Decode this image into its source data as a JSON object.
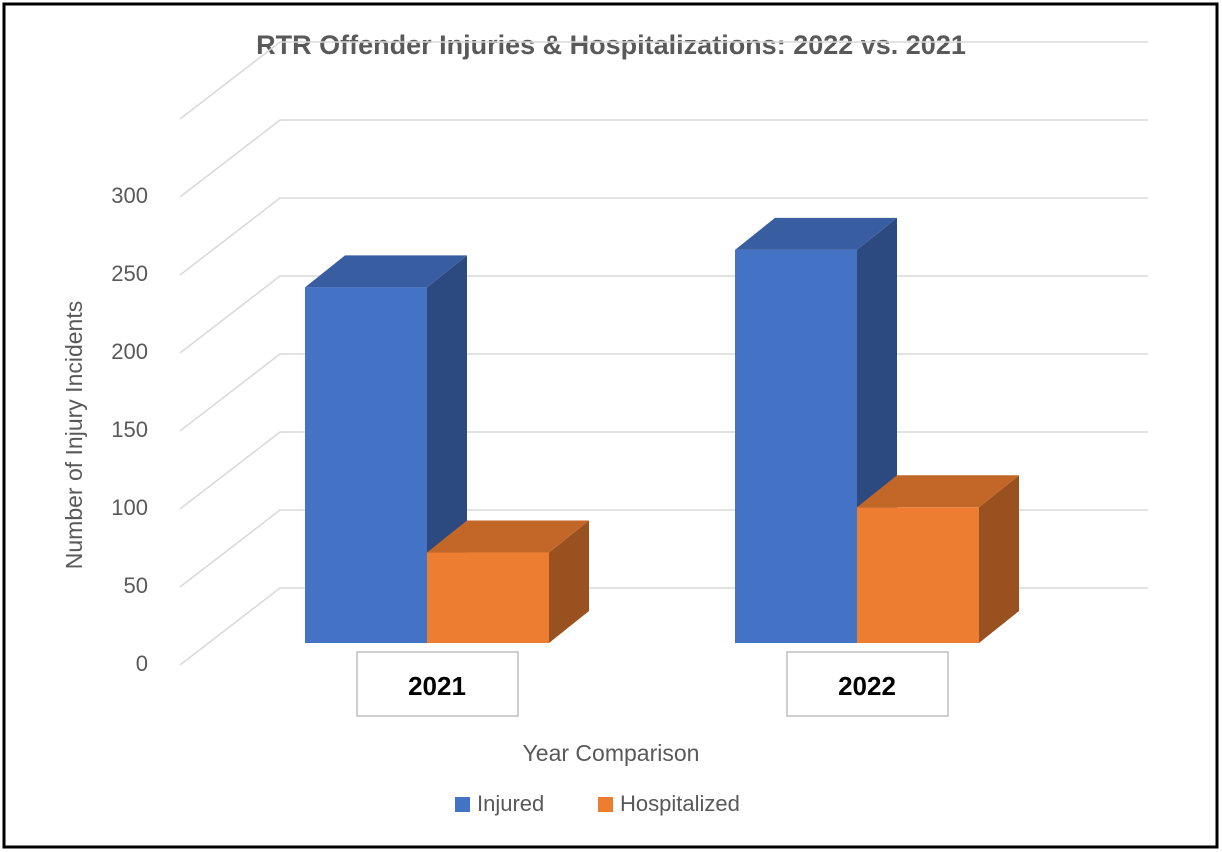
{
  "chart_data": {
    "type": "bar3d",
    "title": "RTR Offender Injuries & Hospitalizations: 2022 vs. 2021",
    "x_label": "Year Comparison",
    "y_label": "Number of Injury Incidents",
    "categories": [
      "2021",
      "2022"
    ],
    "series": [
      {
        "name": "Injured",
        "color": "#4472c4",
        "values": [
          228,
          252
        ]
      },
      {
        "name": "Hospitalized",
        "color": "#ed7d31",
        "values": [
          58,
          87
        ]
      }
    ],
    "ylim": [
      0,
      350
    ],
    "yticks": [
      0,
      50,
      100,
      150,
      200,
      250,
      300
    ],
    "grid": true,
    "legend": "bottom"
  }
}
